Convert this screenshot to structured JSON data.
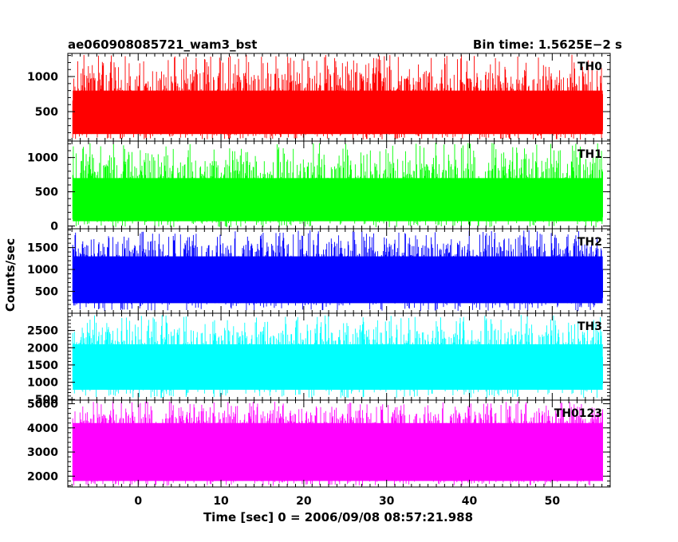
{
  "header": {
    "title": "ae060908085721_wam3_bst",
    "bin_time": "Bin time: 1.5625E−2 s"
  },
  "chart_data": {
    "type": "line",
    "title": "ae060908085721_wam3_bst",
    "xlabel": "Time [sec] 0 = 2006/09/08 08:57:21.988",
    "ylabel": "Counts/sec",
    "xlim": [
      -8.5,
      57
    ],
    "x_ticks": [
      "0",
      "10",
      "20",
      "30",
      "40",
      "50"
    ],
    "x_tick_values": [
      0,
      10,
      20,
      30,
      40,
      50
    ],
    "data_x_range": [
      -7.9,
      56.1
    ],
    "grid": false,
    "panels": [
      {
        "name": "TH0",
        "color": "#ff0000",
        "ylim": [
          80,
          1330
        ],
        "y_ticks": [
          "500",
          "1000"
        ],
        "y_tick_values": [
          500,
          1000
        ],
        "baseline_low": 180,
        "baseline_high": 800,
        "spike_max": 1310
      },
      {
        "name": "TH1",
        "color": "#00ff00",
        "ylim": [
          -40,
          1240
        ],
        "y_ticks": [
          "0",
          "500",
          "1000"
        ],
        "y_tick_values": [
          0,
          500,
          1000
        ],
        "baseline_low": 70,
        "baseline_high": 700,
        "spike_max": 1215
      },
      {
        "name": "TH2",
        "color": "#0000ff",
        "ylim": [
          0,
          1930
        ],
        "y_ticks": [
          "500",
          "1000",
          "1500"
        ],
        "y_tick_values": [
          500,
          1000,
          1500
        ],
        "baseline_low": 230,
        "baseline_high": 1300,
        "spike_max": 1900
      },
      {
        "name": "TH3",
        "color": "#00ffff",
        "ylim": [
          480,
          3000
        ],
        "y_ticks": [
          "500",
          "1000",
          "1500",
          "2000",
          "2500"
        ],
        "y_tick_values": [
          500,
          1000,
          1500,
          2000,
          2500
        ],
        "baseline_low": 780,
        "baseline_high": 2100,
        "spike_max": 2960
      },
      {
        "name": "TH0123",
        "color": "#ff00ff",
        "ylim": [
          1550,
          5150
        ],
        "y_ticks": [
          "2000",
          "3000",
          "4000",
          "5000"
        ],
        "y_tick_values": [
          2000,
          3000,
          4000,
          5000
        ],
        "baseline_low": 1800,
        "baseline_high": 4200,
        "spike_max": 5100
      }
    ]
  }
}
